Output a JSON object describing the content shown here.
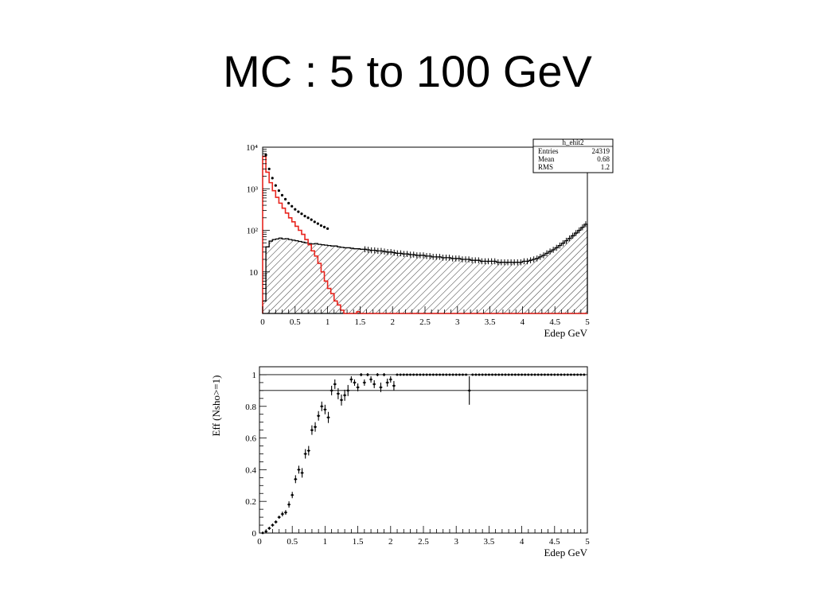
{
  "slide": {
    "title": "MC : 5 to 100 GeV"
  },
  "chart_data": [
    {
      "type": "histogram",
      "scale": "log-y",
      "xlabel": "Edep GeV",
      "ylabel": "",
      "xlim": [
        0,
        5
      ],
      "ylim": [
        1,
        10000
      ],
      "x_ticks": [
        "0",
        "0.5",
        "1",
        "1.5",
        "2",
        "2.5",
        "3",
        "3.5",
        "4",
        "4.5",
        "5"
      ],
      "stats_box": {
        "name": "h_ehit2",
        "rows": [
          {
            "label": "Entries",
            "value": "24319"
          },
          {
            "label": "Mean",
            "value": "0.68"
          },
          {
            "label": "RMS",
            "value": "1.2"
          }
        ]
      },
      "bin_width": 0.05,
      "colors": {
        "hatched": "#000000",
        "red": "#e8251e",
        "points": "#000000"
      },
      "series": [
        {
          "style": "hatched-black",
          "values": [
            2,
            40,
            55,
            60,
            62,
            65,
            62,
            63,
            60,
            58,
            56,
            54,
            52,
            50,
            48,
            47,
            48,
            46,
            45,
            44,
            43,
            42,
            42,
            40,
            39,
            38,
            38,
            37,
            36,
            36,
            35,
            35,
            34,
            33,
            33,
            32,
            32,
            31,
            30,
            30,
            29,
            28,
            28,
            27,
            27,
            26,
            26,
            25,
            25,
            25,
            24,
            24,
            23,
            23,
            23,
            22,
            22,
            22,
            21,
            21,
            21,
            20,
            20,
            20,
            19,
            19,
            19,
            18,
            18,
            18,
            18,
            18,
            17,
            17,
            17,
            17,
            17,
            17,
            17,
            17,
            18,
            18,
            19,
            20,
            21,
            23,
            25,
            28,
            31,
            34,
            38,
            43,
            49,
            56,
            64,
            74,
            86,
            100,
            118,
            140
          ]
        },
        {
          "style": "red-step",
          "values": [
            6000,
            2500,
            1400,
            900,
            620,
            450,
            340,
            260,
            200,
            160,
            125,
            100,
            80,
            60,
            45,
            32,
            24,
            16,
            10,
            6,
            4,
            3,
            2,
            1.6,
            1.2,
            1,
            0,
            0,
            0,
            1.1,
            0,
            0,
            0,
            0,
            0,
            0,
            0,
            0,
            0,
            0,
            0,
            0,
            0,
            0,
            0,
            0,
            0,
            0,
            0,
            0,
            0,
            0,
            0,
            0,
            0,
            0,
            0,
            0,
            0,
            0,
            0,
            0,
            0,
            0,
            0,
            0,
            0,
            0,
            0,
            0,
            0,
            0,
            0,
            0,
            0,
            0,
            0,
            0,
            0,
            0,
            0,
            0,
            0,
            0,
            0,
            0,
            0,
            0,
            0,
            0,
            0,
            0,
            0,
            0,
            0,
            0,
            0,
            0,
            0,
            0
          ]
        },
        {
          "style": "points",
          "x": [
            0.05,
            0.1,
            0.15,
            0.2,
            0.25,
            0.3,
            0.35,
            0.4,
            0.45,
            0.5,
            0.55,
            0.6,
            0.65,
            0.7,
            0.75,
            0.8,
            0.85,
            0.9,
            0.95,
            1.0
          ],
          "values": [
            6500,
            3000,
            1800,
            1200,
            900,
            700,
            560,
            450,
            380,
            320,
            280,
            250,
            220,
            200,
            180,
            160,
            145,
            130,
            120,
            110
          ]
        }
      ]
    },
    {
      "type": "scatter",
      "xlabel": "Edep GeV",
      "ylabel": "Eff (Nsho>=1)",
      "xlim": [
        0,
        5
      ],
      "ylim": [
        0,
        1.05
      ],
      "x_ticks": [
        "0",
        "0.5",
        "1",
        "1.5",
        "2",
        "2.5",
        "3",
        "3.5",
        "4",
        "4.5",
        "5"
      ],
      "y_ticks": [
        "0",
        "0.2",
        "0.4",
        "0.6",
        "0.8",
        "1"
      ],
      "reference_lines": [
        1.0,
        0.9
      ],
      "points": [
        {
          "x": 0.05,
          "y": 0.0,
          "e": 0.01
        },
        {
          "x": 0.1,
          "y": 0.01,
          "e": 0.01
        },
        {
          "x": 0.15,
          "y": 0.03,
          "e": 0.01
        },
        {
          "x": 0.2,
          "y": 0.05,
          "e": 0.01
        },
        {
          "x": 0.25,
          "y": 0.07,
          "e": 0.01
        },
        {
          "x": 0.3,
          "y": 0.1,
          "e": 0.01
        },
        {
          "x": 0.35,
          "y": 0.12,
          "e": 0.015
        },
        {
          "x": 0.4,
          "y": 0.13,
          "e": 0.015
        },
        {
          "x": 0.45,
          "y": 0.18,
          "e": 0.02
        },
        {
          "x": 0.5,
          "y": 0.24,
          "e": 0.02
        },
        {
          "x": 0.55,
          "y": 0.34,
          "e": 0.025
        },
        {
          "x": 0.6,
          "y": 0.4,
          "e": 0.025
        },
        {
          "x": 0.65,
          "y": 0.38,
          "e": 0.03
        },
        {
          "x": 0.7,
          "y": 0.5,
          "e": 0.03
        },
        {
          "x": 0.75,
          "y": 0.52,
          "e": 0.03
        },
        {
          "x": 0.8,
          "y": 0.65,
          "e": 0.03
        },
        {
          "x": 0.85,
          "y": 0.67,
          "e": 0.03
        },
        {
          "x": 0.9,
          "y": 0.74,
          "e": 0.03
        },
        {
          "x": 0.95,
          "y": 0.8,
          "e": 0.03
        },
        {
          "x": 1.0,
          "y": 0.78,
          "e": 0.03
        },
        {
          "x": 1.05,
          "y": 0.73,
          "e": 0.035
        },
        {
          "x": 1.1,
          "y": 0.9,
          "e": 0.03
        },
        {
          "x": 1.15,
          "y": 0.94,
          "e": 0.03
        },
        {
          "x": 1.2,
          "y": 0.88,
          "e": 0.035
        },
        {
          "x": 1.25,
          "y": 0.84,
          "e": 0.035
        },
        {
          "x": 1.3,
          "y": 0.87,
          "e": 0.035
        },
        {
          "x": 1.35,
          "y": 0.9,
          "e": 0.035
        },
        {
          "x": 1.4,
          "y": 0.97,
          "e": 0.02
        },
        {
          "x": 1.45,
          "y": 0.95,
          "e": 0.02
        },
        {
          "x": 1.5,
          "y": 0.92,
          "e": 0.025
        },
        {
          "x": 1.55,
          "y": 1.0,
          "e": 0.01
        },
        {
          "x": 1.6,
          "y": 0.95,
          "e": 0.02
        },
        {
          "x": 1.65,
          "y": 1.0,
          "e": 0.01
        },
        {
          "x": 1.7,
          "y": 0.97,
          "e": 0.02
        },
        {
          "x": 1.75,
          "y": 0.94,
          "e": 0.025
        },
        {
          "x": 1.8,
          "y": 1.0,
          "e": 0.01
        },
        {
          "x": 1.85,
          "y": 0.92,
          "e": 0.03
        },
        {
          "x": 1.9,
          "y": 1.0,
          "e": 0.01
        },
        {
          "x": 1.95,
          "y": 0.95,
          "e": 0.025
        },
        {
          "x": 2.0,
          "y": 0.97,
          "e": 0.02
        },
        {
          "x": 2.05,
          "y": 0.93,
          "e": 0.03
        },
        {
          "x": 2.1,
          "y": 1.0,
          "e": 0.005
        },
        {
          "x": 2.15,
          "y": 1.0,
          "e": 0.005
        },
        {
          "x": 2.2,
          "y": 1.0,
          "e": 0.005
        },
        {
          "x": 2.25,
          "y": 1.0,
          "e": 0.005
        },
        {
          "x": 2.3,
          "y": 1.0,
          "e": 0.005
        },
        {
          "x": 2.35,
          "y": 1.0,
          "e": 0.005
        },
        {
          "x": 2.4,
          "y": 1.0,
          "e": 0.005
        },
        {
          "x": 2.45,
          "y": 1.0,
          "e": 0.005
        },
        {
          "x": 2.5,
          "y": 1.0,
          "e": 0.005
        },
        {
          "x": 2.55,
          "y": 1.0,
          "e": 0.005
        },
        {
          "x": 2.6,
          "y": 1.0,
          "e": 0.005
        },
        {
          "x": 2.65,
          "y": 1.0,
          "e": 0.005
        },
        {
          "x": 2.7,
          "y": 1.0,
          "e": 0.005
        },
        {
          "x": 2.75,
          "y": 1.0,
          "e": 0.005
        },
        {
          "x": 2.8,
          "y": 1.0,
          "e": 0.005
        },
        {
          "x": 2.85,
          "y": 1.0,
          "e": 0.005
        },
        {
          "x": 2.9,
          "y": 1.0,
          "e": 0.005
        },
        {
          "x": 2.95,
          "y": 1.0,
          "e": 0.005
        },
        {
          "x": 3.0,
          "y": 1.0,
          "e": 0.005
        },
        {
          "x": 3.05,
          "y": 1.0,
          "e": 0.005
        },
        {
          "x": 3.1,
          "y": 1.0,
          "e": 0.005
        },
        {
          "x": 3.15,
          "y": 1.0,
          "e": 0.005
        },
        {
          "x": 3.2,
          "y": 0.9,
          "e": 0.09
        },
        {
          "x": 3.25,
          "y": 1.0,
          "e": 0.005
        },
        {
          "x": 3.3,
          "y": 1.0,
          "e": 0.005
        },
        {
          "x": 3.35,
          "y": 1.0,
          "e": 0.005
        },
        {
          "x": 3.4,
          "y": 1.0,
          "e": 0.005
        },
        {
          "x": 3.45,
          "y": 1.0,
          "e": 0.005
        },
        {
          "x": 3.5,
          "y": 1.0,
          "e": 0.005
        },
        {
          "x": 3.55,
          "y": 1.0,
          "e": 0.005
        },
        {
          "x": 3.6,
          "y": 1.0,
          "e": 0.005
        },
        {
          "x": 3.65,
          "y": 1.0,
          "e": 0.005
        },
        {
          "x": 3.7,
          "y": 1.0,
          "e": 0.005
        },
        {
          "x": 3.75,
          "y": 1.0,
          "e": 0.005
        },
        {
          "x": 3.8,
          "y": 1.0,
          "e": 0.005
        },
        {
          "x": 3.85,
          "y": 1.0,
          "e": 0.005
        },
        {
          "x": 3.9,
          "y": 1.0,
          "e": 0.005
        },
        {
          "x": 3.95,
          "y": 1.0,
          "e": 0.005
        },
        {
          "x": 4.0,
          "y": 1.0,
          "e": 0.005
        },
        {
          "x": 4.05,
          "y": 1.0,
          "e": 0.005
        },
        {
          "x": 4.1,
          "y": 1.0,
          "e": 0.005
        },
        {
          "x": 4.15,
          "y": 1.0,
          "e": 0.005
        },
        {
          "x": 4.2,
          "y": 1.0,
          "e": 0.005
        },
        {
          "x": 4.25,
          "y": 1.0,
          "e": 0.005
        },
        {
          "x": 4.3,
          "y": 1.0,
          "e": 0.005
        },
        {
          "x": 4.35,
          "y": 1.0,
          "e": 0.005
        },
        {
          "x": 4.4,
          "y": 1.0,
          "e": 0.005
        },
        {
          "x": 4.45,
          "y": 1.0,
          "e": 0.005
        },
        {
          "x": 4.5,
          "y": 1.0,
          "e": 0.005
        },
        {
          "x": 4.55,
          "y": 1.0,
          "e": 0.005
        },
        {
          "x": 4.6,
          "y": 1.0,
          "e": 0.005
        },
        {
          "x": 4.65,
          "y": 1.0,
          "e": 0.005
        },
        {
          "x": 4.7,
          "y": 1.0,
          "e": 0.005
        },
        {
          "x": 4.75,
          "y": 1.0,
          "e": 0.005
        },
        {
          "x": 4.8,
          "y": 1.0,
          "e": 0.005
        },
        {
          "x": 4.85,
          "y": 1.0,
          "e": 0.005
        },
        {
          "x": 4.9,
          "y": 1.0,
          "e": 0.005
        },
        {
          "x": 4.95,
          "y": 1.0,
          "e": 0.005
        }
      ]
    }
  ]
}
